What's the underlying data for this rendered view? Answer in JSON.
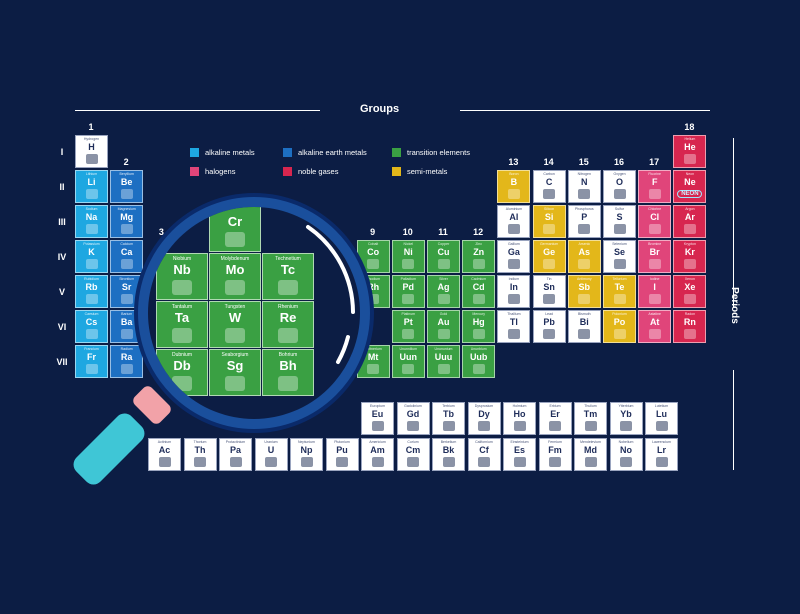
{
  "header": {
    "groups_label": "Groups",
    "periods_label": "Periods"
  },
  "group_numbers": [
    {
      "n": "1",
      "col": 1
    },
    {
      "n": "2",
      "col": 2
    },
    {
      "n": "3",
      "col": 3
    },
    {
      "n": "9",
      "col": 9
    },
    {
      "n": "10",
      "col": 10
    },
    {
      "n": "11",
      "col": 11
    },
    {
      "n": "12",
      "col": 12
    },
    {
      "n": "13",
      "col": 13
    },
    {
      "n": "14",
      "col": 14
    },
    {
      "n": "15",
      "col": 15
    },
    {
      "n": "16",
      "col": 16
    },
    {
      "n": "17",
      "col": 17
    },
    {
      "n": "18",
      "col": 18
    }
  ],
  "periods": [
    "I",
    "II",
    "III",
    "IV",
    "V",
    "VI",
    "VII"
  ],
  "legend": [
    {
      "label": "alkaline metals",
      "color": "#1ea7e1"
    },
    {
      "label": "alkaline earth metals",
      "color": "#1d6fc2"
    },
    {
      "label": "transition elements",
      "color": "#3aa043"
    },
    {
      "label": "halogens",
      "color": "#e0457a"
    },
    {
      "label": "noble gases",
      "color": "#d7264f"
    },
    {
      "label": "semi-metals",
      "color": "#e3b71a"
    }
  ],
  "colors": {
    "alkali": "#1ea7e1",
    "alkaline_earth": "#1d6fc2",
    "transition": "#3aa043",
    "halogen": "#e0457a",
    "noble": "#d7264f",
    "semi": "#e3b71a",
    "other": "#ffffff"
  },
  "elements": [
    {
      "sym": "H",
      "name": "Hydrogen",
      "row": 1,
      "col": 1,
      "cat": "other"
    },
    {
      "sym": "He",
      "name": "Helium",
      "row": 1,
      "col": 18,
      "cat": "noble"
    },
    {
      "sym": "Li",
      "name": "Lithium",
      "row": 2,
      "col": 1,
      "cat": "alkali"
    },
    {
      "sym": "Be",
      "name": "Beryllium",
      "row": 2,
      "col": 2,
      "cat": "alkaline_earth"
    },
    {
      "sym": "B",
      "name": "Boron",
      "row": 2,
      "col": 13,
      "cat": "semi"
    },
    {
      "sym": "C",
      "name": "Carbon",
      "row": 2,
      "col": 14,
      "cat": "other"
    },
    {
      "sym": "N",
      "name": "Nitrogen",
      "row": 2,
      "col": 15,
      "cat": "other"
    },
    {
      "sym": "O",
      "name": "Oxygen",
      "row": 2,
      "col": 16,
      "cat": "other"
    },
    {
      "sym": "F",
      "name": "Fluorine",
      "row": 2,
      "col": 17,
      "cat": "halogen"
    },
    {
      "sym": "Ne",
      "name": "Neon",
      "row": 2,
      "col": 18,
      "cat": "noble"
    },
    {
      "sym": "Na",
      "name": "Sodium",
      "row": 3,
      "col": 1,
      "cat": "alkali"
    },
    {
      "sym": "Mg",
      "name": "Magnesium",
      "row": 3,
      "col": 2,
      "cat": "alkaline_earth"
    },
    {
      "sym": "Al",
      "name": "Aluminium",
      "row": 3,
      "col": 13,
      "cat": "other"
    },
    {
      "sym": "Si",
      "name": "Silicon",
      "row": 3,
      "col": 14,
      "cat": "semi"
    },
    {
      "sym": "P",
      "name": "Phosphorus",
      "row": 3,
      "col": 15,
      "cat": "other"
    },
    {
      "sym": "S",
      "name": "Sulfur",
      "row": 3,
      "col": 16,
      "cat": "other"
    },
    {
      "sym": "Cl",
      "name": "Chlorine",
      "row": 3,
      "col": 17,
      "cat": "halogen"
    },
    {
      "sym": "Ar",
      "name": "Argon",
      "row": 3,
      "col": 18,
      "cat": "noble"
    },
    {
      "sym": "K",
      "name": "Potassium",
      "row": 4,
      "col": 1,
      "cat": "alkali"
    },
    {
      "sym": "Ca",
      "name": "Calcium",
      "row": 4,
      "col": 2,
      "cat": "alkaline_earth"
    },
    {
      "sym": "Co",
      "name": "Cobalt",
      "row": 4,
      "col": 9,
      "cat": "transition"
    },
    {
      "sym": "Ni",
      "name": "Nickel",
      "row": 4,
      "col": 10,
      "cat": "transition"
    },
    {
      "sym": "Cu",
      "name": "Copper",
      "row": 4,
      "col": 11,
      "cat": "transition"
    },
    {
      "sym": "Zn",
      "name": "Zinc",
      "row": 4,
      "col": 12,
      "cat": "transition"
    },
    {
      "sym": "Ga",
      "name": "Gallium",
      "row": 4,
      "col": 13,
      "cat": "other"
    },
    {
      "sym": "Ge",
      "name": "Germanium",
      "row": 4,
      "col": 14,
      "cat": "semi"
    },
    {
      "sym": "As",
      "name": "Arsenic",
      "row": 4,
      "col": 15,
      "cat": "semi"
    },
    {
      "sym": "Se",
      "name": "Selenium",
      "row": 4,
      "col": 16,
      "cat": "other"
    },
    {
      "sym": "Br",
      "name": "Bromine",
      "row": 4,
      "col": 17,
      "cat": "halogen"
    },
    {
      "sym": "Kr",
      "name": "Krypton",
      "row": 4,
      "col": 18,
      "cat": "noble"
    },
    {
      "sym": "Rb",
      "name": "Rubidium",
      "row": 5,
      "col": 1,
      "cat": "alkali"
    },
    {
      "sym": "Sr",
      "name": "Strontium",
      "row": 5,
      "col": 2,
      "cat": "alkaline_earth"
    },
    {
      "sym": "Rh",
      "name": "Rhodium",
      "row": 5,
      "col": 9,
      "cat": "transition"
    },
    {
      "sym": "Pd",
      "name": "Palladium",
      "row": 5,
      "col": 10,
      "cat": "transition"
    },
    {
      "sym": "Ag",
      "name": "Silver",
      "row": 5,
      "col": 11,
      "cat": "transition"
    },
    {
      "sym": "Cd",
      "name": "Cadmium",
      "row": 5,
      "col": 12,
      "cat": "transition"
    },
    {
      "sym": "In",
      "name": "Indium",
      "row": 5,
      "col": 13,
      "cat": "other"
    },
    {
      "sym": "Sn",
      "name": "Tin",
      "row": 5,
      "col": 14,
      "cat": "other"
    },
    {
      "sym": "Sb",
      "name": "Antimony",
      "row": 5,
      "col": 15,
      "cat": "semi"
    },
    {
      "sym": "Te",
      "name": "Tellurium",
      "row": 5,
      "col": 16,
      "cat": "semi"
    },
    {
      "sym": "I",
      "name": "Iodine",
      "row": 5,
      "col": 17,
      "cat": "halogen"
    },
    {
      "sym": "Xe",
      "name": "Xenon",
      "row": 5,
      "col": 18,
      "cat": "noble"
    },
    {
      "sym": "Cs",
      "name": "Caesium",
      "row": 6,
      "col": 1,
      "cat": "alkali"
    },
    {
      "sym": "Ba",
      "name": "Barium",
      "row": 6,
      "col": 2,
      "cat": "alkaline_earth"
    },
    {
      "sym": "Pt",
      "name": "Platinum",
      "row": 6,
      "col": 10,
      "cat": "transition"
    },
    {
      "sym": "Au",
      "name": "Gold",
      "row": 6,
      "col": 11,
      "cat": "transition"
    },
    {
      "sym": "Hg",
      "name": "Mercury",
      "row": 6,
      "col": 12,
      "cat": "transition"
    },
    {
      "sym": "Tl",
      "name": "Thallium",
      "row": 6,
      "col": 13,
      "cat": "other"
    },
    {
      "sym": "Pb",
      "name": "Lead",
      "row": 6,
      "col": 14,
      "cat": "other"
    },
    {
      "sym": "Bi",
      "name": "Bismuth",
      "row": 6,
      "col": 15,
      "cat": "other"
    },
    {
      "sym": "Po",
      "name": "Polonium",
      "row": 6,
      "col": 16,
      "cat": "semi"
    },
    {
      "sym": "At",
      "name": "Astatine",
      "row": 6,
      "col": 17,
      "cat": "halogen"
    },
    {
      "sym": "Rn",
      "name": "Radon",
      "row": 6,
      "col": 18,
      "cat": "noble"
    },
    {
      "sym": "Fr",
      "name": "Francium",
      "row": 7,
      "col": 1,
      "cat": "alkali"
    },
    {
      "sym": "Ra",
      "name": "Radium",
      "row": 7,
      "col": 2,
      "cat": "alkaline_earth"
    },
    {
      "sym": "Mt",
      "name": "Meitnerium",
      "row": 7,
      "col": 9,
      "cat": "transition"
    },
    {
      "sym": "Uun",
      "name": "Ununnilium",
      "row": 7,
      "col": 10,
      "cat": "transition"
    },
    {
      "sym": "Uuu",
      "name": "Unununium",
      "row": 7,
      "col": 11,
      "cat": "transition"
    },
    {
      "sym": "Uub",
      "name": "Ununbium",
      "row": 7,
      "col": 12,
      "cat": "transition"
    },
    {
      "sym": "Eu",
      "name": "Europium",
      "row": 8,
      "col": 6,
      "cat": "other"
    },
    {
      "sym": "Gd",
      "name": "Gadolinium",
      "row": 8,
      "col": 7,
      "cat": "other"
    },
    {
      "sym": "Tb",
      "name": "Terbium",
      "row": 8,
      "col": 8,
      "cat": "other"
    },
    {
      "sym": "Dy",
      "name": "Dysprosium",
      "row": 8,
      "col": 9,
      "cat": "other"
    },
    {
      "sym": "Ho",
      "name": "Holmium",
      "row": 8,
      "col": 10,
      "cat": "other"
    },
    {
      "sym": "Er",
      "name": "Erbium",
      "row": 8,
      "col": 11,
      "cat": "other"
    },
    {
      "sym": "Tm",
      "name": "Thulium",
      "row": 8,
      "col": 12,
      "cat": "other"
    },
    {
      "sym": "Yb",
      "name": "Ytterbium",
      "row": 8,
      "col": 13,
      "cat": "other"
    },
    {
      "sym": "Lu",
      "name": "Lutetium",
      "row": 8,
      "col": 14,
      "cat": "other"
    },
    {
      "sym": "Ac",
      "name": "Actinium",
      "row": 9,
      "col": 0,
      "cat": "other"
    },
    {
      "sym": "Th",
      "name": "Thorium",
      "row": 9,
      "col": 1,
      "cat": "other"
    },
    {
      "sym": "Pa",
      "name": "Protactinium",
      "row": 9,
      "col": 2,
      "cat": "other"
    },
    {
      "sym": "U",
      "name": "Uranium",
      "row": 9,
      "col": 3,
      "cat": "other"
    },
    {
      "sym": "Np",
      "name": "Neptunium",
      "row": 9,
      "col": 4,
      "cat": "other"
    },
    {
      "sym": "Pu",
      "name": "Plutonium",
      "row": 9,
      "col": 5,
      "cat": "other"
    },
    {
      "sym": "Am",
      "name": "Americium",
      "row": 9,
      "col": 6,
      "cat": "other"
    },
    {
      "sym": "Cm",
      "name": "Curium",
      "row": 9,
      "col": 7,
      "cat": "other"
    },
    {
      "sym": "Bk",
      "name": "Berkelium",
      "row": 9,
      "col": 8,
      "cat": "other"
    },
    {
      "sym": "Cf",
      "name": "Californium",
      "row": 9,
      "col": 9,
      "cat": "other"
    },
    {
      "sym": "Es",
      "name": "Einsteinium",
      "row": 9,
      "col": 10,
      "cat": "other"
    },
    {
      "sym": "Fm",
      "name": "Fermium",
      "row": 9,
      "col": 11,
      "cat": "other"
    },
    {
      "sym": "Md",
      "name": "Mendelevium",
      "row": 9,
      "col": 12,
      "cat": "other"
    },
    {
      "sym": "No",
      "name": "Nobelium",
      "row": 9,
      "col": 13,
      "cat": "other"
    },
    {
      "sym": "Lr",
      "name": "Lawrencium",
      "row": 9,
      "col": 14,
      "cat": "other"
    }
  ],
  "magnified": [
    {
      "sym": "Cr",
      "name": "",
      "row": 0,
      "col": 1
    },
    {
      "sym": "Nb",
      "name": "Niobium",
      "row": 1,
      "col": 0
    },
    {
      "sym": "Mo",
      "name": "Molybdenum",
      "row": 1,
      "col": 1
    },
    {
      "sym": "Tc",
      "name": "Technetium",
      "row": 1,
      "col": 2
    },
    {
      "sym": "Ta",
      "name": "Tantalum",
      "row": 2,
      "col": 0
    },
    {
      "sym": "W",
      "name": "Tungsten",
      "row": 2,
      "col": 1
    },
    {
      "sym": "Re",
      "name": "Rhenium",
      "row": 2,
      "col": 2
    },
    {
      "sym": "Db",
      "name": "Dubnium",
      "row": 3,
      "col": 0
    },
    {
      "sym": "Sg",
      "name": "Seaborgium",
      "row": 3,
      "col": 1
    },
    {
      "sym": "Bh",
      "name": "Bohrium",
      "row": 3,
      "col": 2
    }
  ],
  "neon_sign": "NEON"
}
